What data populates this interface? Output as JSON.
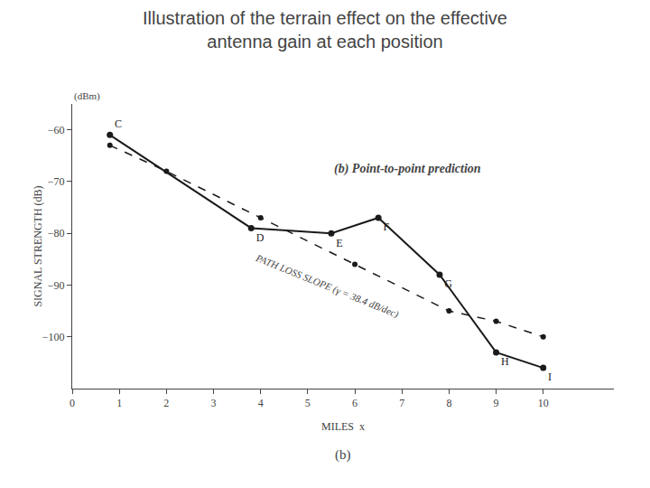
{
  "chart_data": {
    "type": "line",
    "title": "Illustration of the terrain effect on the effective\nantenna gain at each position",
    "subtitle": "(b)",
    "annotations": [
      "(b) Point-to-point prediction",
      "PATH LOSS SLOPE (γ = 38.4 dB/dec)",
      "(dBm)"
    ],
    "x_label": "MILES  x",
    "y_label": "SIGNAL STRENGTH (dB)",
    "series": [
      {
        "x": [
          0.8,
          3.8,
          5.5,
          6.5,
          7.8,
          9.0,
          10.0
        ],
        "values": [
          -61,
          -79,
          -80,
          -77,
          -88,
          -103,
          -106
        ],
        "labels": [
          "C",
          "D",
          "E",
          "F",
          "G",
          "H",
          "I"
        ],
        "color": "#1a1a1a",
        "line_style": "solid",
        "marker": "circle"
      },
      {
        "x": [
          0.8,
          2.0,
          4.0,
          6.0,
          8.0,
          9.0,
          10.0
        ],
        "values": [
          -63,
          -68,
          -77,
          -86,
          -95,
          -97,
          -100
        ],
        "color": "#1a1a1a",
        "line_style": "dashed",
        "marker": "circle"
      }
    ],
    "xlim": [
      0,
      11.5
    ],
    "ylim": [
      -110,
      -55
    ],
    "xticks": [
      0,
      1,
      2,
      3,
      4,
      5,
      6,
      7,
      8,
      9,
      10
    ],
    "yticks": [
      {
        "value": -60,
        "label": "−60"
      },
      {
        "value": -70,
        "label": "−70"
      },
      {
        "value": -80,
        "label": "−80"
      },
      {
        "value": -90,
        "label": "−90"
      },
      {
        "value": -100,
        "label": "−100"
      }
    ],
    "grid": false
  }
}
